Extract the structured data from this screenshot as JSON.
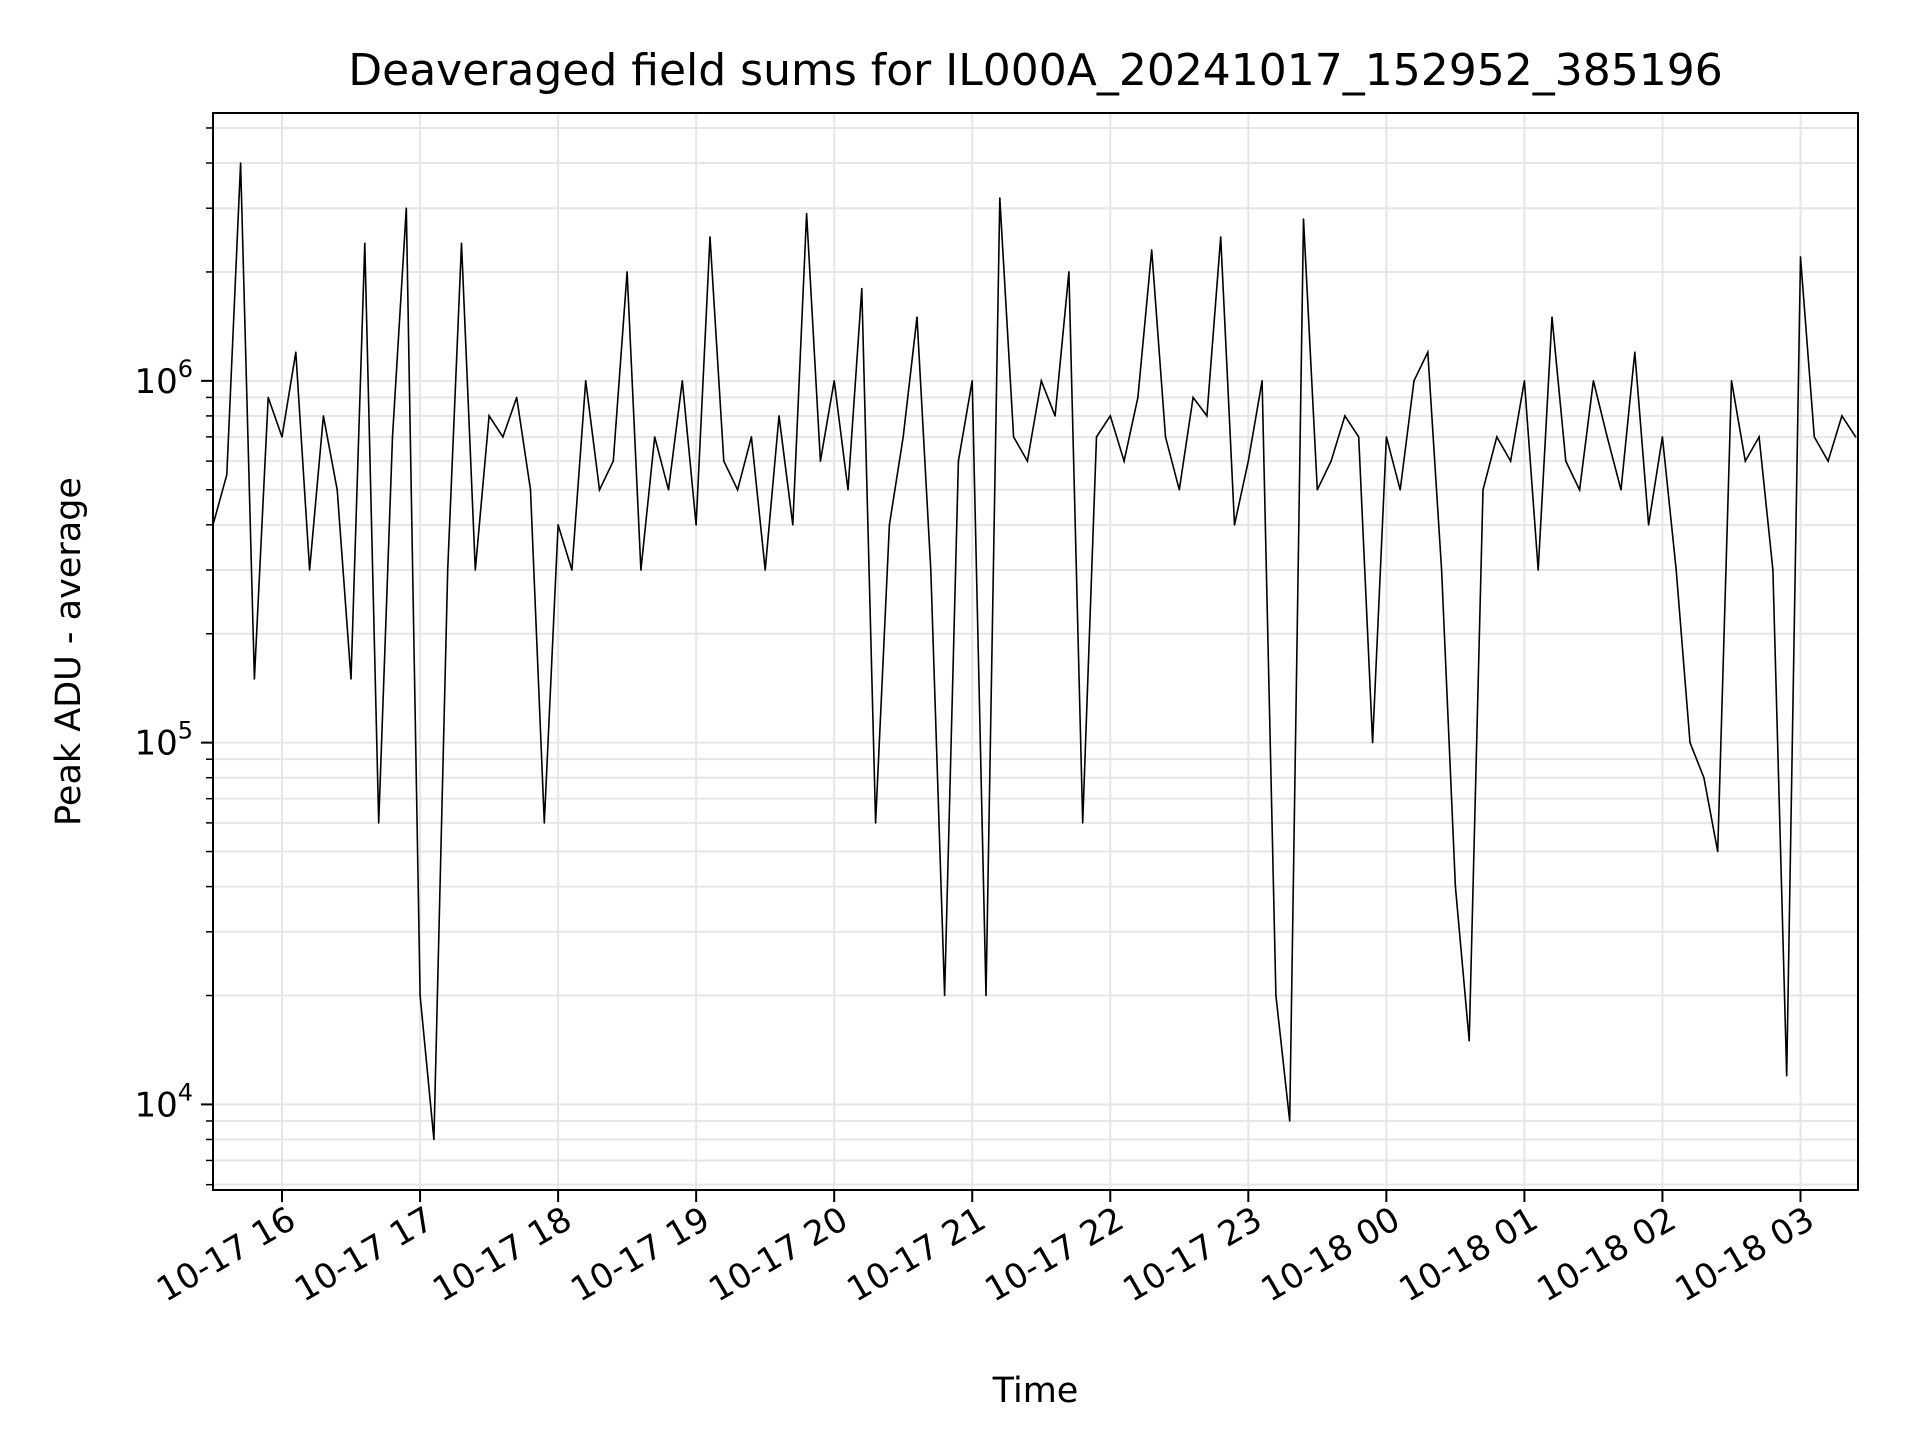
{
  "chart_data": {
    "type": "line",
    "title": "Deaveraged field sums for IL000A_20241017_152952_385196",
    "xlabel": "Time",
    "ylabel": "Peak ADU - average",
    "yscale": "log",
    "ylim": [
      5800,
      5500000
    ],
    "xlim": [
      "2024-10-17 15:30",
      "2024-10-18 03:25"
    ],
    "grid": true,
    "line_color": "#000000",
    "x_ticks": [
      {
        "time": "2024-10-17 16:00",
        "label": "10-17 16"
      },
      {
        "time": "2024-10-17 17:00",
        "label": "10-17 17"
      },
      {
        "time": "2024-10-17 18:00",
        "label": "10-17 18"
      },
      {
        "time": "2024-10-17 19:00",
        "label": "10-17 19"
      },
      {
        "time": "2024-10-17 20:00",
        "label": "10-17 20"
      },
      {
        "time": "2024-10-17 21:00",
        "label": "10-17 21"
      },
      {
        "time": "2024-10-17 22:00",
        "label": "10-17 22"
      },
      {
        "time": "2024-10-17 23:00",
        "label": "10-17 23"
      },
      {
        "time": "2024-10-18 00:00",
        "label": "10-18 00"
      },
      {
        "time": "2024-10-18 01:00",
        "label": "10-18 01"
      },
      {
        "time": "2024-10-18 02:00",
        "label": "10-18 02"
      },
      {
        "time": "2024-10-18 03:00",
        "label": "10-18 03"
      }
    ],
    "y_ticks": [
      {
        "value": 10000,
        "base": "10",
        "exp": "4"
      },
      {
        "value": 100000,
        "base": "10",
        "exp": "5"
      },
      {
        "value": 1000000,
        "base": "10",
        "exp": "6"
      }
    ],
    "series": [
      {
        "x": [
          "2024-10-17 15:30",
          "2024-10-17 15:36",
          "2024-10-17 15:42",
          "2024-10-17 15:48",
          "2024-10-17 15:54",
          "2024-10-17 16:00",
          "2024-10-17 16:06",
          "2024-10-17 16:12",
          "2024-10-17 16:18",
          "2024-10-17 16:24",
          "2024-10-17 16:30",
          "2024-10-17 16:36",
          "2024-10-17 16:42",
          "2024-10-17 16:48",
          "2024-10-17 16:54",
          "2024-10-17 17:00",
          "2024-10-17 17:06",
          "2024-10-17 17:12",
          "2024-10-17 17:18",
          "2024-10-17 17:24",
          "2024-10-17 17:30",
          "2024-10-17 17:36",
          "2024-10-17 17:42",
          "2024-10-17 17:48",
          "2024-10-17 17:54",
          "2024-10-17 18:00",
          "2024-10-17 18:06",
          "2024-10-17 18:12",
          "2024-10-17 18:18",
          "2024-10-17 18:24",
          "2024-10-17 18:30",
          "2024-10-17 18:36",
          "2024-10-17 18:42",
          "2024-10-17 18:48",
          "2024-10-17 18:54",
          "2024-10-17 19:00",
          "2024-10-17 19:06",
          "2024-10-17 19:12",
          "2024-10-17 19:18",
          "2024-10-17 19:24",
          "2024-10-17 19:30",
          "2024-10-17 19:36",
          "2024-10-17 19:42",
          "2024-10-17 19:48",
          "2024-10-17 19:54",
          "2024-10-17 20:00",
          "2024-10-17 20:06",
          "2024-10-17 20:12",
          "2024-10-17 20:18",
          "2024-10-17 20:24",
          "2024-10-17 20:30",
          "2024-10-17 20:36",
          "2024-10-17 20:42",
          "2024-10-17 20:48",
          "2024-10-17 20:54",
          "2024-10-17 21:00",
          "2024-10-17 21:06",
          "2024-10-17 21:12",
          "2024-10-17 21:18",
          "2024-10-17 21:24",
          "2024-10-17 21:30",
          "2024-10-17 21:36",
          "2024-10-17 21:42",
          "2024-10-17 21:48",
          "2024-10-17 21:54",
          "2024-10-17 22:00",
          "2024-10-17 22:06",
          "2024-10-17 22:12",
          "2024-10-17 22:18",
          "2024-10-17 22:24",
          "2024-10-17 22:30",
          "2024-10-17 22:36",
          "2024-10-17 22:42",
          "2024-10-17 22:48",
          "2024-10-17 22:54",
          "2024-10-17 23:00",
          "2024-10-17 23:06",
          "2024-10-17 23:12",
          "2024-10-17 23:18",
          "2024-10-17 23:24",
          "2024-10-17 23:30",
          "2024-10-17 23:36",
          "2024-10-17 23:42",
          "2024-10-17 23:48",
          "2024-10-17 23:54",
          "2024-10-18 00:00",
          "2024-10-18 00:06",
          "2024-10-18 00:12",
          "2024-10-18 00:18",
          "2024-10-18 00:24",
          "2024-10-18 00:30",
          "2024-10-18 00:36",
          "2024-10-18 00:42",
          "2024-10-18 00:48",
          "2024-10-18 00:54",
          "2024-10-18 01:00",
          "2024-10-18 01:06",
          "2024-10-18 01:12",
          "2024-10-18 01:18",
          "2024-10-18 01:24",
          "2024-10-18 01:30",
          "2024-10-18 01:36",
          "2024-10-18 01:42",
          "2024-10-18 01:48",
          "2024-10-18 01:54",
          "2024-10-18 02:00",
          "2024-10-18 02:06",
          "2024-10-18 02:12",
          "2024-10-18 02:18",
          "2024-10-18 02:24",
          "2024-10-18 02:30",
          "2024-10-18 02:36",
          "2024-10-18 02:42",
          "2024-10-18 02:48",
          "2024-10-18 02:54",
          "2024-10-18 03:00",
          "2024-10-18 03:06",
          "2024-10-18 03:12",
          "2024-10-18 03:18",
          "2024-10-18 03:24"
        ],
        "y": [
          400000,
          550000,
          4000000,
          150000,
          900000,
          700000,
          1200000,
          300000,
          800000,
          500000,
          150000,
          2400000,
          60000,
          700000,
          3000000,
          20000,
          8000,
          300000,
          2400000,
          300000,
          800000,
          700000,
          900000,
          500000,
          60000,
          400000,
          300000,
          1000000,
          500000,
          600000,
          2000000,
          300000,
          700000,
          500000,
          1000000,
          400000,
          2500000,
          600000,
          500000,
          700000,
          300000,
          800000,
          400000,
          2900000,
          600000,
          1000000,
          500000,
          1800000,
          60000,
          400000,
          700000,
          1500000,
          300000,
          20000,
          600000,
          1000000,
          20000,
          3200000,
          700000,
          600000,
          1000000,
          800000,
          2000000,
          60000,
          700000,
          800000,
          600000,
          900000,
          2300000,
          700000,
          500000,
          900000,
          800000,
          2500000,
          400000,
          600000,
          1000000,
          20000,
          9000,
          2800000,
          500000,
          600000,
          800000,
          700000,
          100000,
          700000,
          500000,
          1000000,
          1200000,
          300000,
          40000,
          15000,
          500000,
          700000,
          600000,
          1000000,
          300000,
          1500000,
          600000,
          500000,
          1000000,
          700000,
          500000,
          1200000,
          400000,
          700000,
          300000,
          100000,
          80000,
          50000,
          1000000,
          600000,
          700000,
          300000,
          12000,
          2200000,
          700000,
          600000,
          800000,
          700000
        ]
      }
    ]
  }
}
